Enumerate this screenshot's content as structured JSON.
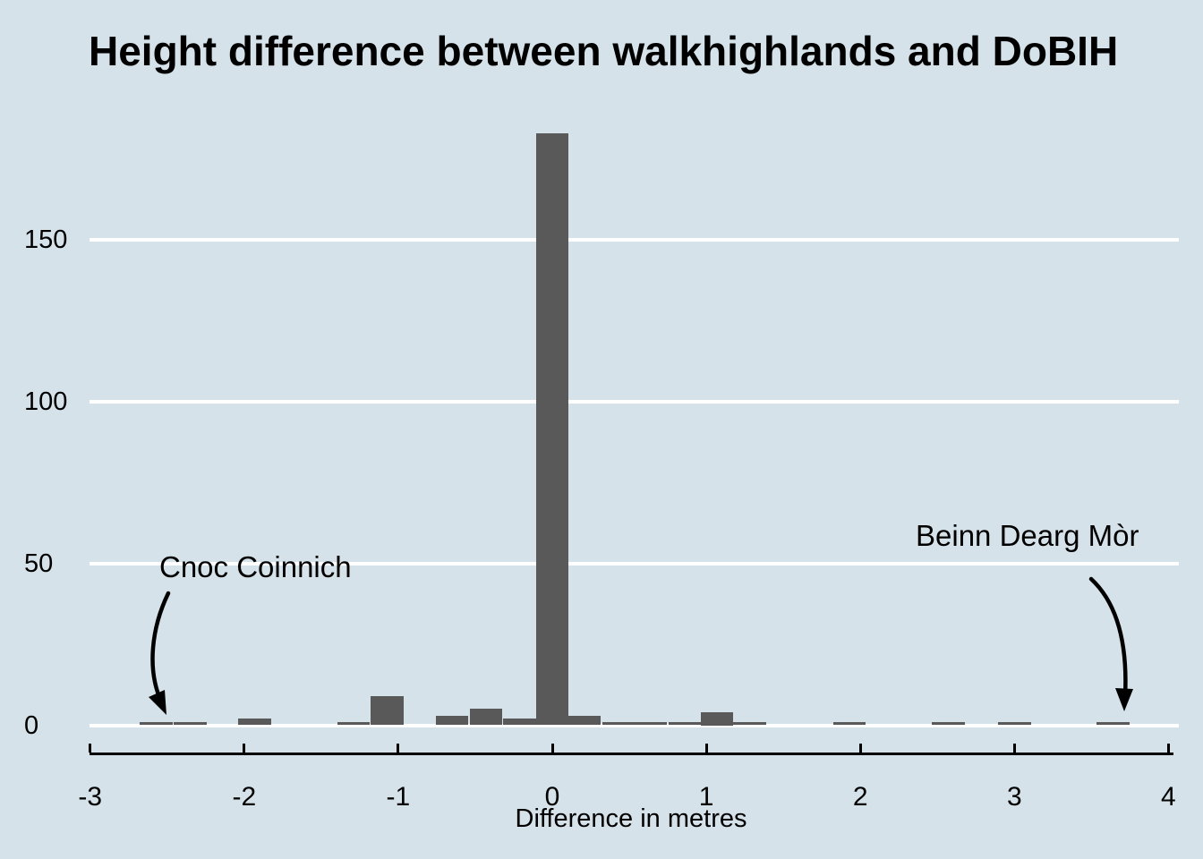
{
  "title": "Height difference between walkhighlands and DoBIH",
  "chart_data": {
    "type": "bar",
    "subtype": "histogram",
    "title": "Height difference between walkhighlands and DoBIH",
    "xlabel": "Difference in metres",
    "ylabel": "",
    "xlim": [
      -3,
      4
    ],
    "ylim": [
      0,
      190
    ],
    "x_ticks": [
      -3,
      -2,
      -1,
      0,
      1,
      2,
      3,
      4
    ],
    "y_ticks": [
      0,
      50,
      100,
      150
    ],
    "grid": "horizontal-white",
    "legend": "none",
    "bin_width": 0.214,
    "bins": [
      {
        "x": -2.57,
        "count": 1
      },
      {
        "x": -2.35,
        "count": 1
      },
      {
        "x": -1.93,
        "count": 2
      },
      {
        "x": -1.29,
        "count": 1
      },
      {
        "x": -1.07,
        "count": 9
      },
      {
        "x": -0.65,
        "count": 3
      },
      {
        "x": -0.43,
        "count": 5
      },
      {
        "x": -0.21,
        "count": 2
      },
      {
        "x": 0.0,
        "count": 183
      },
      {
        "x": 0.21,
        "count": 3
      },
      {
        "x": 0.43,
        "count": 1
      },
      {
        "x": 0.64,
        "count": 1
      },
      {
        "x": 0.86,
        "count": 1
      },
      {
        "x": 1.07,
        "count": 4
      },
      {
        "x": 1.28,
        "count": 1
      },
      {
        "x": 1.93,
        "count": 1
      },
      {
        "x": 2.57,
        "count": 1
      },
      {
        "x": 3.0,
        "count": 1
      },
      {
        "x": 3.64,
        "count": 1
      }
    ],
    "annotations": [
      {
        "label": "Cnoc Coinnich",
        "points_to_x": -2.5
      },
      {
        "label": "Beinn Dearg Mòr",
        "points_to_x": 3.64
      }
    ],
    "colors": {
      "background": "#d5e2ea",
      "bar": "#595959",
      "gridline": "#ffffff",
      "text": "#000000"
    }
  }
}
